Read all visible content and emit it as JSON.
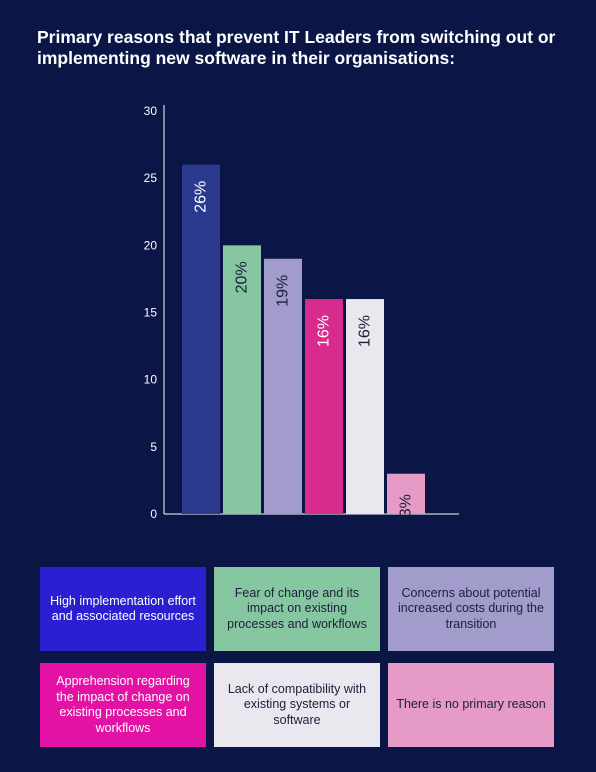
{
  "title": "Primary reasons that prevent IT Leaders from switching out or implementing new software in their organisations:",
  "chart_data": {
    "type": "bar",
    "title": "Primary reasons that prevent IT Leaders from switching out or implementing new software in their organisations:",
    "ylim": [
      0,
      30
    ],
    "yticks": [
      0,
      5,
      10,
      15,
      20,
      25,
      30
    ],
    "grid": false,
    "legend": "bottom",
    "categories": [
      "High implementation effort and associated resources",
      "Fear of change and its impact on existing processes and workflows",
      "Concerns about potential increased costs during the transition",
      "Apprehension regarding the impact of change on existing processes and workflows",
      "Lack of compatibility with existing systems or software",
      "There is no primary reason"
    ],
    "values": [
      26,
      20,
      19,
      16,
      16,
      3
    ],
    "labels": [
      "26%",
      "20%",
      "19%",
      "16%",
      "16%",
      "3%"
    ],
    "colors": [
      "#2b3a8f",
      "#86c7a1",
      "#a19ccc",
      "#d92b8e",
      "#e8e8ee",
      "#e59bc6"
    ],
    "label_colors": [
      "#ffffff",
      "#1b1f3a",
      "#1b1f3a",
      "#ffffff",
      "#1b1f3a",
      "#1b1f3a"
    ]
  },
  "legend": [
    {
      "text": "High implementation effort and associated resources",
      "bg": "#2a1fd1",
      "color": "#ffffff"
    },
    {
      "text": "Fear of change and its impact on existing processes and workflows",
      "bg": "#86c7a1",
      "color": "#1b1f3a"
    },
    {
      "text": "Concerns about potential increased costs during the transition",
      "bg": "#a19ccc",
      "color": "#1b1f3a"
    },
    {
      "text": "Apprehension regarding the impact of change on existing processes and workflows",
      "bg": "#e412a4",
      "color": "#ffffff"
    },
    {
      "text": "Lack of compatibility with existing systems or software",
      "bg": "#e8e8ee",
      "color": "#1b1f3a"
    },
    {
      "text": "There is no primary reason",
      "bg": "#e59bc6",
      "color": "#1b1f3a"
    }
  ]
}
